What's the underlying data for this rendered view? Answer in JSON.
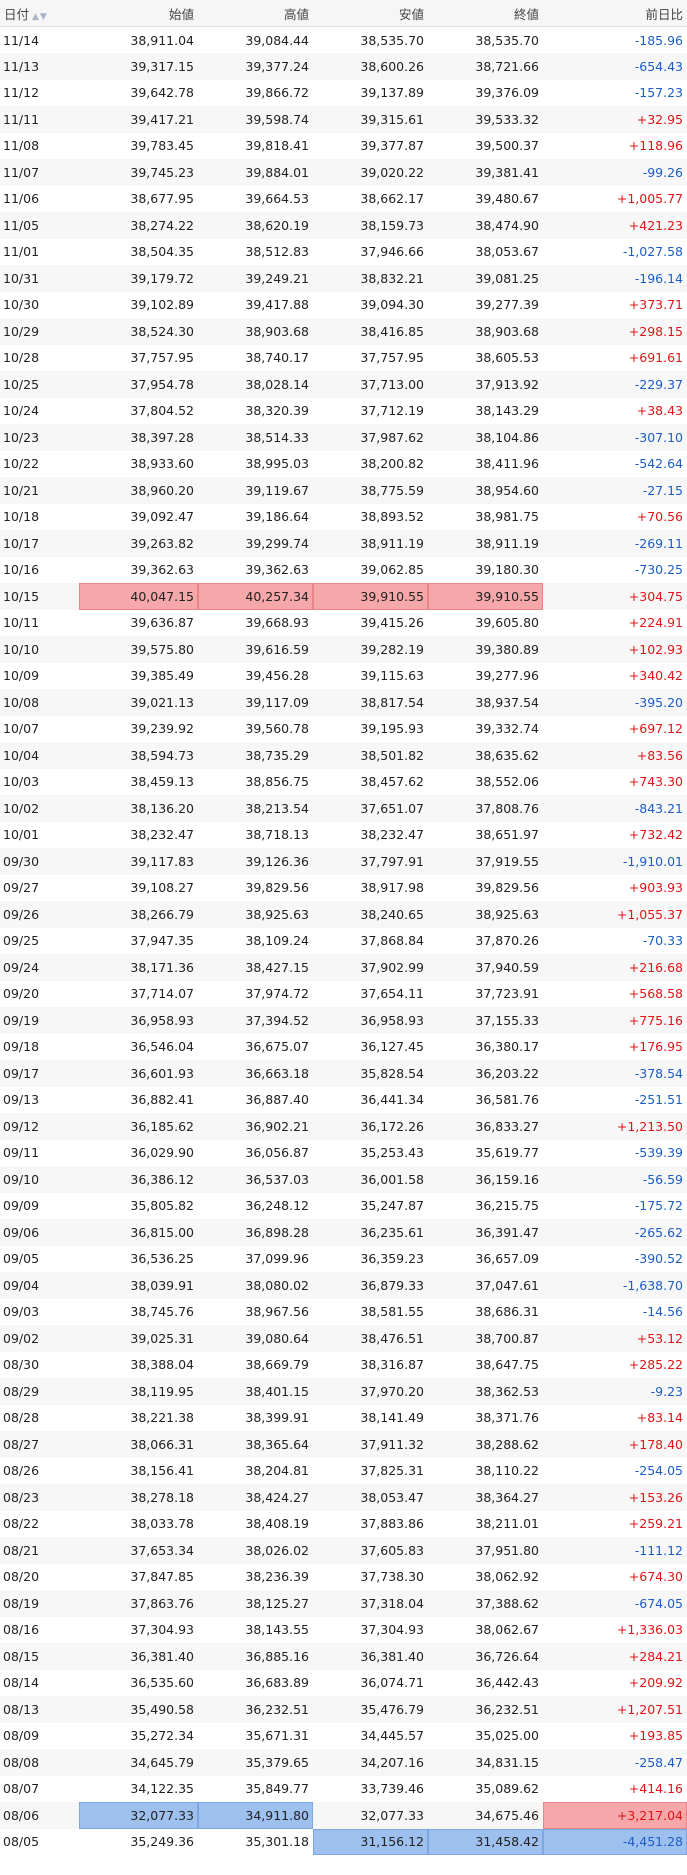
{
  "colors": {
    "up": "#e0151a",
    "down": "#1f5dc2",
    "high_cell": "#f5a7a9",
    "low_cell": "#9ec0ee"
  },
  "header": {
    "date": "日付",
    "sort_icon": "▲▼",
    "open": "始値",
    "high": "高値",
    "low": "安値",
    "close": "終値",
    "change": "前日比"
  },
  "rows": [
    {
      "date": "11/14",
      "open": "38,911.04",
      "high": "39,084.44",
      "low": "38,535.70",
      "close": "38,535.70",
      "change": "-185.96"
    },
    {
      "date": "11/13",
      "open": "39,317.15",
      "high": "39,377.24",
      "low": "38,600.26",
      "close": "38,721.66",
      "change": "-654.43"
    },
    {
      "date": "11/12",
      "open": "39,642.78",
      "high": "39,866.72",
      "low": "39,137.89",
      "close": "39,376.09",
      "change": "-157.23"
    },
    {
      "date": "11/11",
      "open": "39,417.21",
      "high": "39,598.74",
      "low": "39,315.61",
      "close": "39,533.32",
      "change": "+32.95"
    },
    {
      "date": "11/08",
      "open": "39,783.45",
      "high": "39,818.41",
      "low": "39,377.87",
      "close": "39,500.37",
      "change": "+118.96"
    },
    {
      "date": "11/07",
      "open": "39,745.23",
      "high": "39,884.01",
      "low": "39,020.22",
      "close": "39,381.41",
      "change": "-99.26"
    },
    {
      "date": "11/06",
      "open": "38,677.95",
      "high": "39,664.53",
      "low": "38,662.17",
      "close": "39,480.67",
      "change": "+1,005.77"
    },
    {
      "date": "11/05",
      "open": "38,274.22",
      "high": "38,620.19",
      "low": "38,159.73",
      "close": "38,474.90",
      "change": "+421.23"
    },
    {
      "date": "11/01",
      "open": "38,504.35",
      "high": "38,512.83",
      "low": "37,946.66",
      "close": "38,053.67",
      "change": "-1,027.58"
    },
    {
      "date": "10/31",
      "open": "39,179.72",
      "high": "39,249.21",
      "low": "38,832.21",
      "close": "39,081.25",
      "change": "-196.14"
    },
    {
      "date": "10/30",
      "open": "39,102.89",
      "high": "39,417.88",
      "low": "39,094.30",
      "close": "39,277.39",
      "change": "+373.71"
    },
    {
      "date": "10/29",
      "open": "38,524.30",
      "high": "38,903.68",
      "low": "38,416.85",
      "close": "38,903.68",
      "change": "+298.15"
    },
    {
      "date": "10/28",
      "open": "37,757.95",
      "high": "38,740.17",
      "low": "37,757.95",
      "close": "38,605.53",
      "change": "+691.61"
    },
    {
      "date": "10/25",
      "open": "37,954.78",
      "high": "38,028.14",
      "low": "37,713.00",
      "close": "37,913.92",
      "change": "-229.37"
    },
    {
      "date": "10/24",
      "open": "37,804.52",
      "high": "38,320.39",
      "low": "37,712.19",
      "close": "38,143.29",
      "change": "+38.43"
    },
    {
      "date": "10/23",
      "open": "38,397.28",
      "high": "38,514.33",
      "low": "37,987.62",
      "close": "38,104.86",
      "change": "-307.10"
    },
    {
      "date": "10/22",
      "open": "38,933.60",
      "high": "38,995.03",
      "low": "38,200.82",
      "close": "38,411.96",
      "change": "-542.64"
    },
    {
      "date": "10/21",
      "open": "38,960.20",
      "high": "39,119.67",
      "low": "38,775.59",
      "close": "38,954.60",
      "change": "-27.15"
    },
    {
      "date": "10/18",
      "open": "39,092.47",
      "high": "39,186.64",
      "low": "38,893.52",
      "close": "38,981.75",
      "change": "+70.56"
    },
    {
      "date": "10/17",
      "open": "39,263.82",
      "high": "39,299.74",
      "low": "38,911.19",
      "close": "38,911.19",
      "change": "-269.11"
    },
    {
      "date": "10/16",
      "open": "39,362.63",
      "high": "39,362.63",
      "low": "39,062.85",
      "close": "39,180.30",
      "change": "-730.25"
    },
    {
      "date": "10/15",
      "open": "40,047.15",
      "high": "40,257.34",
      "low": "39,910.55",
      "close": "39,910.55",
      "change": "+304.75",
      "hl": [
        "open",
        "high",
        "low",
        "close"
      ]
    },
    {
      "date": "10/11",
      "open": "39,636.87",
      "high": "39,668.93",
      "low": "39,415.26",
      "close": "39,605.80",
      "change": "+224.91"
    },
    {
      "date": "10/10",
      "open": "39,575.80",
      "high": "39,616.59",
      "low": "39,282.19",
      "close": "39,380.89",
      "change": "+102.93"
    },
    {
      "date": "10/09",
      "open": "39,385.49",
      "high": "39,456.28",
      "low": "39,115.63",
      "close": "39,277.96",
      "change": "+340.42"
    },
    {
      "date": "10/08",
      "open": "39,021.13",
      "high": "39,117.09",
      "low": "38,817.54",
      "close": "38,937.54",
      "change": "-395.20"
    },
    {
      "date": "10/07",
      "open": "39,239.92",
      "high": "39,560.78",
      "low": "39,195.93",
      "close": "39,332.74",
      "change": "+697.12"
    },
    {
      "date": "10/04",
      "open": "38,594.73",
      "high": "38,735.29",
      "low": "38,501.82",
      "close": "38,635.62",
      "change": "+83.56"
    },
    {
      "date": "10/03",
      "open": "38,459.13",
      "high": "38,856.75",
      "low": "38,457.62",
      "close": "38,552.06",
      "change": "+743.30"
    },
    {
      "date": "10/02",
      "open": "38,136.20",
      "high": "38,213.54",
      "low": "37,651.07",
      "close": "37,808.76",
      "change": "-843.21"
    },
    {
      "date": "10/01",
      "open": "38,232.47",
      "high": "38,718.13",
      "low": "38,232.47",
      "close": "38,651.97",
      "change": "+732.42"
    },
    {
      "date": "09/30",
      "open": "39,117.83",
      "high": "39,126.36",
      "low": "37,797.91",
      "close": "37,919.55",
      "change": "-1,910.01"
    },
    {
      "date": "09/27",
      "open": "39,108.27",
      "high": "39,829.56",
      "low": "38,917.98",
      "close": "39,829.56",
      "change": "+903.93"
    },
    {
      "date": "09/26",
      "open": "38,266.79",
      "high": "38,925.63",
      "low": "38,240.65",
      "close": "38,925.63",
      "change": "+1,055.37"
    },
    {
      "date": "09/25",
      "open": "37,947.35",
      "high": "38,109.24",
      "low": "37,868.84",
      "close": "37,870.26",
      "change": "-70.33"
    },
    {
      "date": "09/24",
      "open": "38,171.36",
      "high": "38,427.15",
      "low": "37,902.99",
      "close": "37,940.59",
      "change": "+216.68"
    },
    {
      "date": "09/20",
      "open": "37,714.07",
      "high": "37,974.72",
      "low": "37,654.11",
      "close": "37,723.91",
      "change": "+568.58"
    },
    {
      "date": "09/19",
      "open": "36,958.93",
      "high": "37,394.52",
      "low": "36,958.93",
      "close": "37,155.33",
      "change": "+775.16"
    },
    {
      "date": "09/18",
      "open": "36,546.04",
      "high": "36,675.07",
      "low": "36,127.45",
      "close": "36,380.17",
      "change": "+176.95"
    },
    {
      "date": "09/17",
      "open": "36,601.93",
      "high": "36,663.18",
      "low": "35,828.54",
      "close": "36,203.22",
      "change": "-378.54"
    },
    {
      "date": "09/13",
      "open": "36,882.41",
      "high": "36,887.40",
      "low": "36,441.34",
      "close": "36,581.76",
      "change": "-251.51"
    },
    {
      "date": "09/12",
      "open": "36,185.62",
      "high": "36,902.21",
      "low": "36,172.26",
      "close": "36,833.27",
      "change": "+1,213.50"
    },
    {
      "date": "09/11",
      "open": "36,029.90",
      "high": "36,056.87",
      "low": "35,253.43",
      "close": "35,619.77",
      "change": "-539.39"
    },
    {
      "date": "09/10",
      "open": "36,386.12",
      "high": "36,537.03",
      "low": "36,001.58",
      "close": "36,159.16",
      "change": "-56.59"
    },
    {
      "date": "09/09",
      "open": "35,805.82",
      "high": "36,248.12",
      "low": "35,247.87",
      "close": "36,215.75",
      "change": "-175.72"
    },
    {
      "date": "09/06",
      "open": "36,815.00",
      "high": "36,898.28",
      "low": "36,235.61",
      "close": "36,391.47",
      "change": "-265.62"
    },
    {
      "date": "09/05",
      "open": "36,536.25",
      "high": "37,099.96",
      "low": "36,359.23",
      "close": "36,657.09",
      "change": "-390.52"
    },
    {
      "date": "09/04",
      "open": "38,039.91",
      "high": "38,080.02",
      "low": "36,879.33",
      "close": "37,047.61",
      "change": "-1,638.70"
    },
    {
      "date": "09/03",
      "open": "38,745.76",
      "high": "38,967.56",
      "low": "38,581.55",
      "close": "38,686.31",
      "change": "-14.56"
    },
    {
      "date": "09/02",
      "open": "39,025.31",
      "high": "39,080.64",
      "low": "38,476.51",
      "close": "38,700.87",
      "change": "+53.12"
    },
    {
      "date": "08/30",
      "open": "38,388.04",
      "high": "38,669.79",
      "low": "38,316.87",
      "close": "38,647.75",
      "change": "+285.22"
    },
    {
      "date": "08/29",
      "open": "38,119.95",
      "high": "38,401.15",
      "low": "37,970.20",
      "close": "38,362.53",
      "change": "-9.23"
    },
    {
      "date": "08/28",
      "open": "38,221.38",
      "high": "38,399.91",
      "low": "38,141.49",
      "close": "38,371.76",
      "change": "+83.14"
    },
    {
      "date": "08/27",
      "open": "38,066.31",
      "high": "38,365.64",
      "low": "37,911.32",
      "close": "38,288.62",
      "change": "+178.40"
    },
    {
      "date": "08/26",
      "open": "38,156.41",
      "high": "38,204.81",
      "low": "37,825.31",
      "close": "38,110.22",
      "change": "-254.05"
    },
    {
      "date": "08/23",
      "open": "38,278.18",
      "high": "38,424.27",
      "low": "38,053.47",
      "close": "38,364.27",
      "change": "+153.26"
    },
    {
      "date": "08/22",
      "open": "38,033.78",
      "high": "38,408.19",
      "low": "37,883.86",
      "close": "38,211.01",
      "change": "+259.21"
    },
    {
      "date": "08/21",
      "open": "37,653.34",
      "high": "38,026.02",
      "low": "37,605.83",
      "close": "37,951.80",
      "change": "-111.12"
    },
    {
      "date": "08/20",
      "open": "37,847.85",
      "high": "38,236.39",
      "low": "37,738.30",
      "close": "38,062.92",
      "change": "+674.30"
    },
    {
      "date": "08/19",
      "open": "37,863.76",
      "high": "38,125.27",
      "low": "37,318.04",
      "close": "37,388.62",
      "change": "-674.05"
    },
    {
      "date": "08/16",
      "open": "37,304.93",
      "high": "38,143.55",
      "low": "37,304.93",
      "close": "38,062.67",
      "change": "+1,336.03"
    },
    {
      "date": "08/15",
      "open": "36,381.40",
      "high": "36,885.16",
      "low": "36,381.40",
      "close": "36,726.64",
      "change": "+284.21"
    },
    {
      "date": "08/14",
      "open": "36,535.60",
      "high": "36,683.89",
      "low": "36,074.71",
      "close": "36,442.43",
      "change": "+209.92"
    },
    {
      "date": "08/13",
      "open": "35,490.58",
      "high": "36,232.51",
      "low": "35,476.79",
      "close": "36,232.51",
      "change": "+1,207.51"
    },
    {
      "date": "08/09",
      "open": "35,272.34",
      "high": "35,671.31",
      "low": "34,445.57",
      "close": "35,025.00",
      "change": "+193.85"
    },
    {
      "date": "08/08",
      "open": "34,645.79",
      "high": "35,379.65",
      "low": "34,207.16",
      "close": "34,831.15",
      "change": "-258.47"
    },
    {
      "date": "08/07",
      "open": "34,122.35",
      "high": "35,849.77",
      "low": "33,739.46",
      "close": "35,089.62",
      "change": "+414.16"
    },
    {
      "date": "08/06",
      "open": "32,077.33",
      "high": "34,911.80",
      "low": "32,077.33",
      "close": "34,675.46",
      "change": "+3,217.04",
      "lo": [
        "open",
        "high"
      ],
      "hl": [
        "change"
      ]
    },
    {
      "date": "08/05",
      "open": "35,249.36",
      "high": "35,301.18",
      "low": "31,156.12",
      "close": "31,458.42",
      "change": "-4,451.28",
      "lo": [
        "low",
        "close",
        "change"
      ]
    }
  ]
}
